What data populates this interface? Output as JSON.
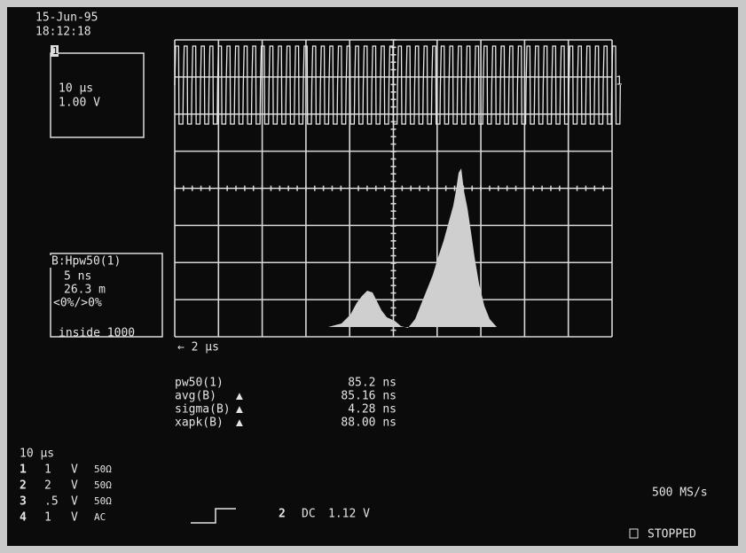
{
  "header": {
    "date": "15-Jun-95",
    "time": "18:12:18"
  },
  "channel_box": {
    "channel": "1",
    "timebase": "10 µs",
    "volts": "1.00 V"
  },
  "trace_marker": "1",
  "measure_box": {
    "title": "B:Hpw50(1)",
    "lines": [
      "5 ns",
      "26.3 m",
      "<0%/>0%",
      "inside 1000"
    ]
  },
  "delay": "← 2 µs",
  "measurements": [
    {
      "name": "pw50(1)",
      "value": "85.2 ns"
    },
    {
      "name": "avg(B)",
      "flag": "▲",
      "value": "85.16 ns"
    },
    {
      "name": "sigma(B)",
      "flag": "▲",
      "value": "4.28 ns"
    },
    {
      "name": "xapk(B)",
      "flag": "▲",
      "value": "88.00 ns"
    }
  ],
  "timebase": "10 µs",
  "channels": [
    {
      "num": "1",
      "scale": "1",
      "unit": "V",
      "coupling": "50Ω"
    },
    {
      "num": "2",
      "scale": "2",
      "unit": "V",
      "coupling": "50Ω"
    },
    {
      "num": "3",
      "scale": ".5",
      "unit": "V",
      "coupling": "50Ω"
    },
    {
      "num": "4",
      "scale": "1",
      "unit": "V",
      "coupling": "AC"
    }
  ],
  "trigger": {
    "source": "2",
    "coupling": "DC",
    "level": "1.12 V"
  },
  "sample_rate": "500 MS/s",
  "status": "STOPPED"
}
